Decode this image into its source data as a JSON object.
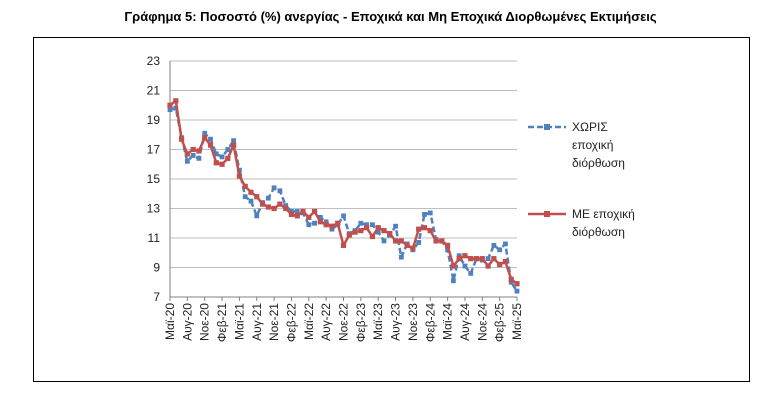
{
  "chart_data": {
    "type": "line",
    "title": "Γράφημα 5: Ποσοστό (%) ανεργίας - Εποχικά και Μη Εποχικά Διορθωμένες Εκτιμήσεις",
    "xlabel": "",
    "ylabel": "",
    "ylim": [
      7,
      23
    ],
    "yticks": [
      7,
      9,
      11,
      13,
      15,
      17,
      19,
      21,
      23
    ],
    "grid": true,
    "legend_position": "right",
    "x": [
      "Μαϊ-20",
      "Ιουν-20",
      "Ιουλ-20",
      "Αυγ-20",
      "Σεπ-20",
      "Οκτ-20",
      "Νοε-20",
      "Δεκ-20",
      "Ιαν-21",
      "Φεβ-21",
      "Μαρ-21",
      "Απρ-21",
      "Μαϊ-21",
      "Ιουν-21",
      "Ιουλ-21",
      "Αυγ-21",
      "Σεπ-21",
      "Οκτ-21",
      "Νοε-21",
      "Δεκ-21",
      "Ιαν-22",
      "Φεβ-22",
      "Μαρ-22",
      "Απρ-22",
      "Μαϊ-22",
      "Ιουν-22",
      "Ιουλ-22",
      "Αυγ-22",
      "Σεπ-22",
      "Οκτ-22",
      "Νοε-22",
      "Δεκ-22",
      "Ιαν-23",
      "Φεβ-23",
      "Μαρ-23",
      "Απρ-23",
      "Μαϊ-23",
      "Ιουν-23",
      "Ιουλ-23",
      "Αυγ-23",
      "Σεπ-23",
      "Οκτ-23",
      "Νοε-23",
      "Δεκ-23",
      "Ιαν-24",
      "Φεβ-24",
      "Μαρ-24",
      "Απρ-24",
      "Μαϊ-24",
      "Ιουν-24",
      "Ιουλ-24",
      "Αυγ-24",
      "Σεπ-24",
      "Οκτ-24",
      "Νοε-24",
      "Δεκ-24",
      "Ιαν-25",
      "Φεβ-25",
      "Μαρ-25",
      "Απρ-25",
      "Μαϊ-25"
    ],
    "x_tick_labels": [
      "Μαϊ-20",
      "Αυγ-20",
      "Νοε-20",
      "Φεβ-21",
      "Μαϊ-21",
      "Αυγ-21",
      "Νοε-21",
      "Φεβ-22",
      "Μαϊ-22",
      "Αυγ-22",
      "Νοε-22",
      "Φεβ-23",
      "Μαϊ-23",
      "Αυγ-23",
      "Νοε-23",
      "Φεβ-24",
      "Μαϊ-24",
      "Αυγ-24",
      "Νοε-24",
      "Φεβ-25",
      "Μαϊ-25"
    ],
    "series": [
      {
        "name": "ΧΩΡΙΣ εποχική διόρθωση",
        "color": "#4f81bd",
        "dash": "dashed",
        "values": [
          19.7,
          19.8,
          17.8,
          16.2,
          16.6,
          16.4,
          18.1,
          17.7,
          16.7,
          16.5,
          17.0,
          17.6,
          15.6,
          13.8,
          13.5,
          12.5,
          13.4,
          13.7,
          14.4,
          14.2,
          13.2,
          12.8,
          12.8,
          12.7,
          11.9,
          12.0,
          12.4,
          12.1,
          11.6,
          11.9,
          12.5,
          11.3,
          11.5,
          12.0,
          11.9,
          11.9,
          11.4,
          10.8,
          11.2,
          11.8,
          9.7,
          10.6,
          10.2,
          10.7,
          12.6,
          12.7,
          10.9,
          10.8,
          10.2,
          8.1,
          9.8,
          9.1,
          8.6,
          9.6,
          9.5,
          9.6,
          10.5,
          10.2,
          10.6,
          8.0,
          7.4
        ]
      },
      {
        "name": "ΜΕ εποχική διόρθωση",
        "color": "#c0504d",
        "dash": "solid",
        "values": [
          20.0,
          20.3,
          17.7,
          16.7,
          17.0,
          16.9,
          17.8,
          17.3,
          16.1,
          16.0,
          16.4,
          17.3,
          15.2,
          14.5,
          14.1,
          13.8,
          13.3,
          13.1,
          13.0,
          13.3,
          13.0,
          12.6,
          12.5,
          12.8,
          12.4,
          12.8,
          12.1,
          11.9,
          11.8,
          12.0,
          10.5,
          11.2,
          11.4,
          11.5,
          11.7,
          11.1,
          11.7,
          11.5,
          11.3,
          10.8,
          10.8,
          10.5,
          10.3,
          11.6,
          11.7,
          11.5,
          10.8,
          10.8,
          10.5,
          9.1,
          9.6,
          9.8,
          9.6,
          9.6,
          9.6,
          9.1,
          9.6,
          9.2,
          9.4,
          8.2,
          7.9
        ]
      }
    ],
    "legend": [
      {
        "lines": [
          "ΧΩΡΙΣ",
          "εποχική",
          "διόρθωση"
        ]
      },
      {
        "lines": [
          "ΜΕ εποχική",
          "διόρθωση"
        ]
      }
    ]
  }
}
